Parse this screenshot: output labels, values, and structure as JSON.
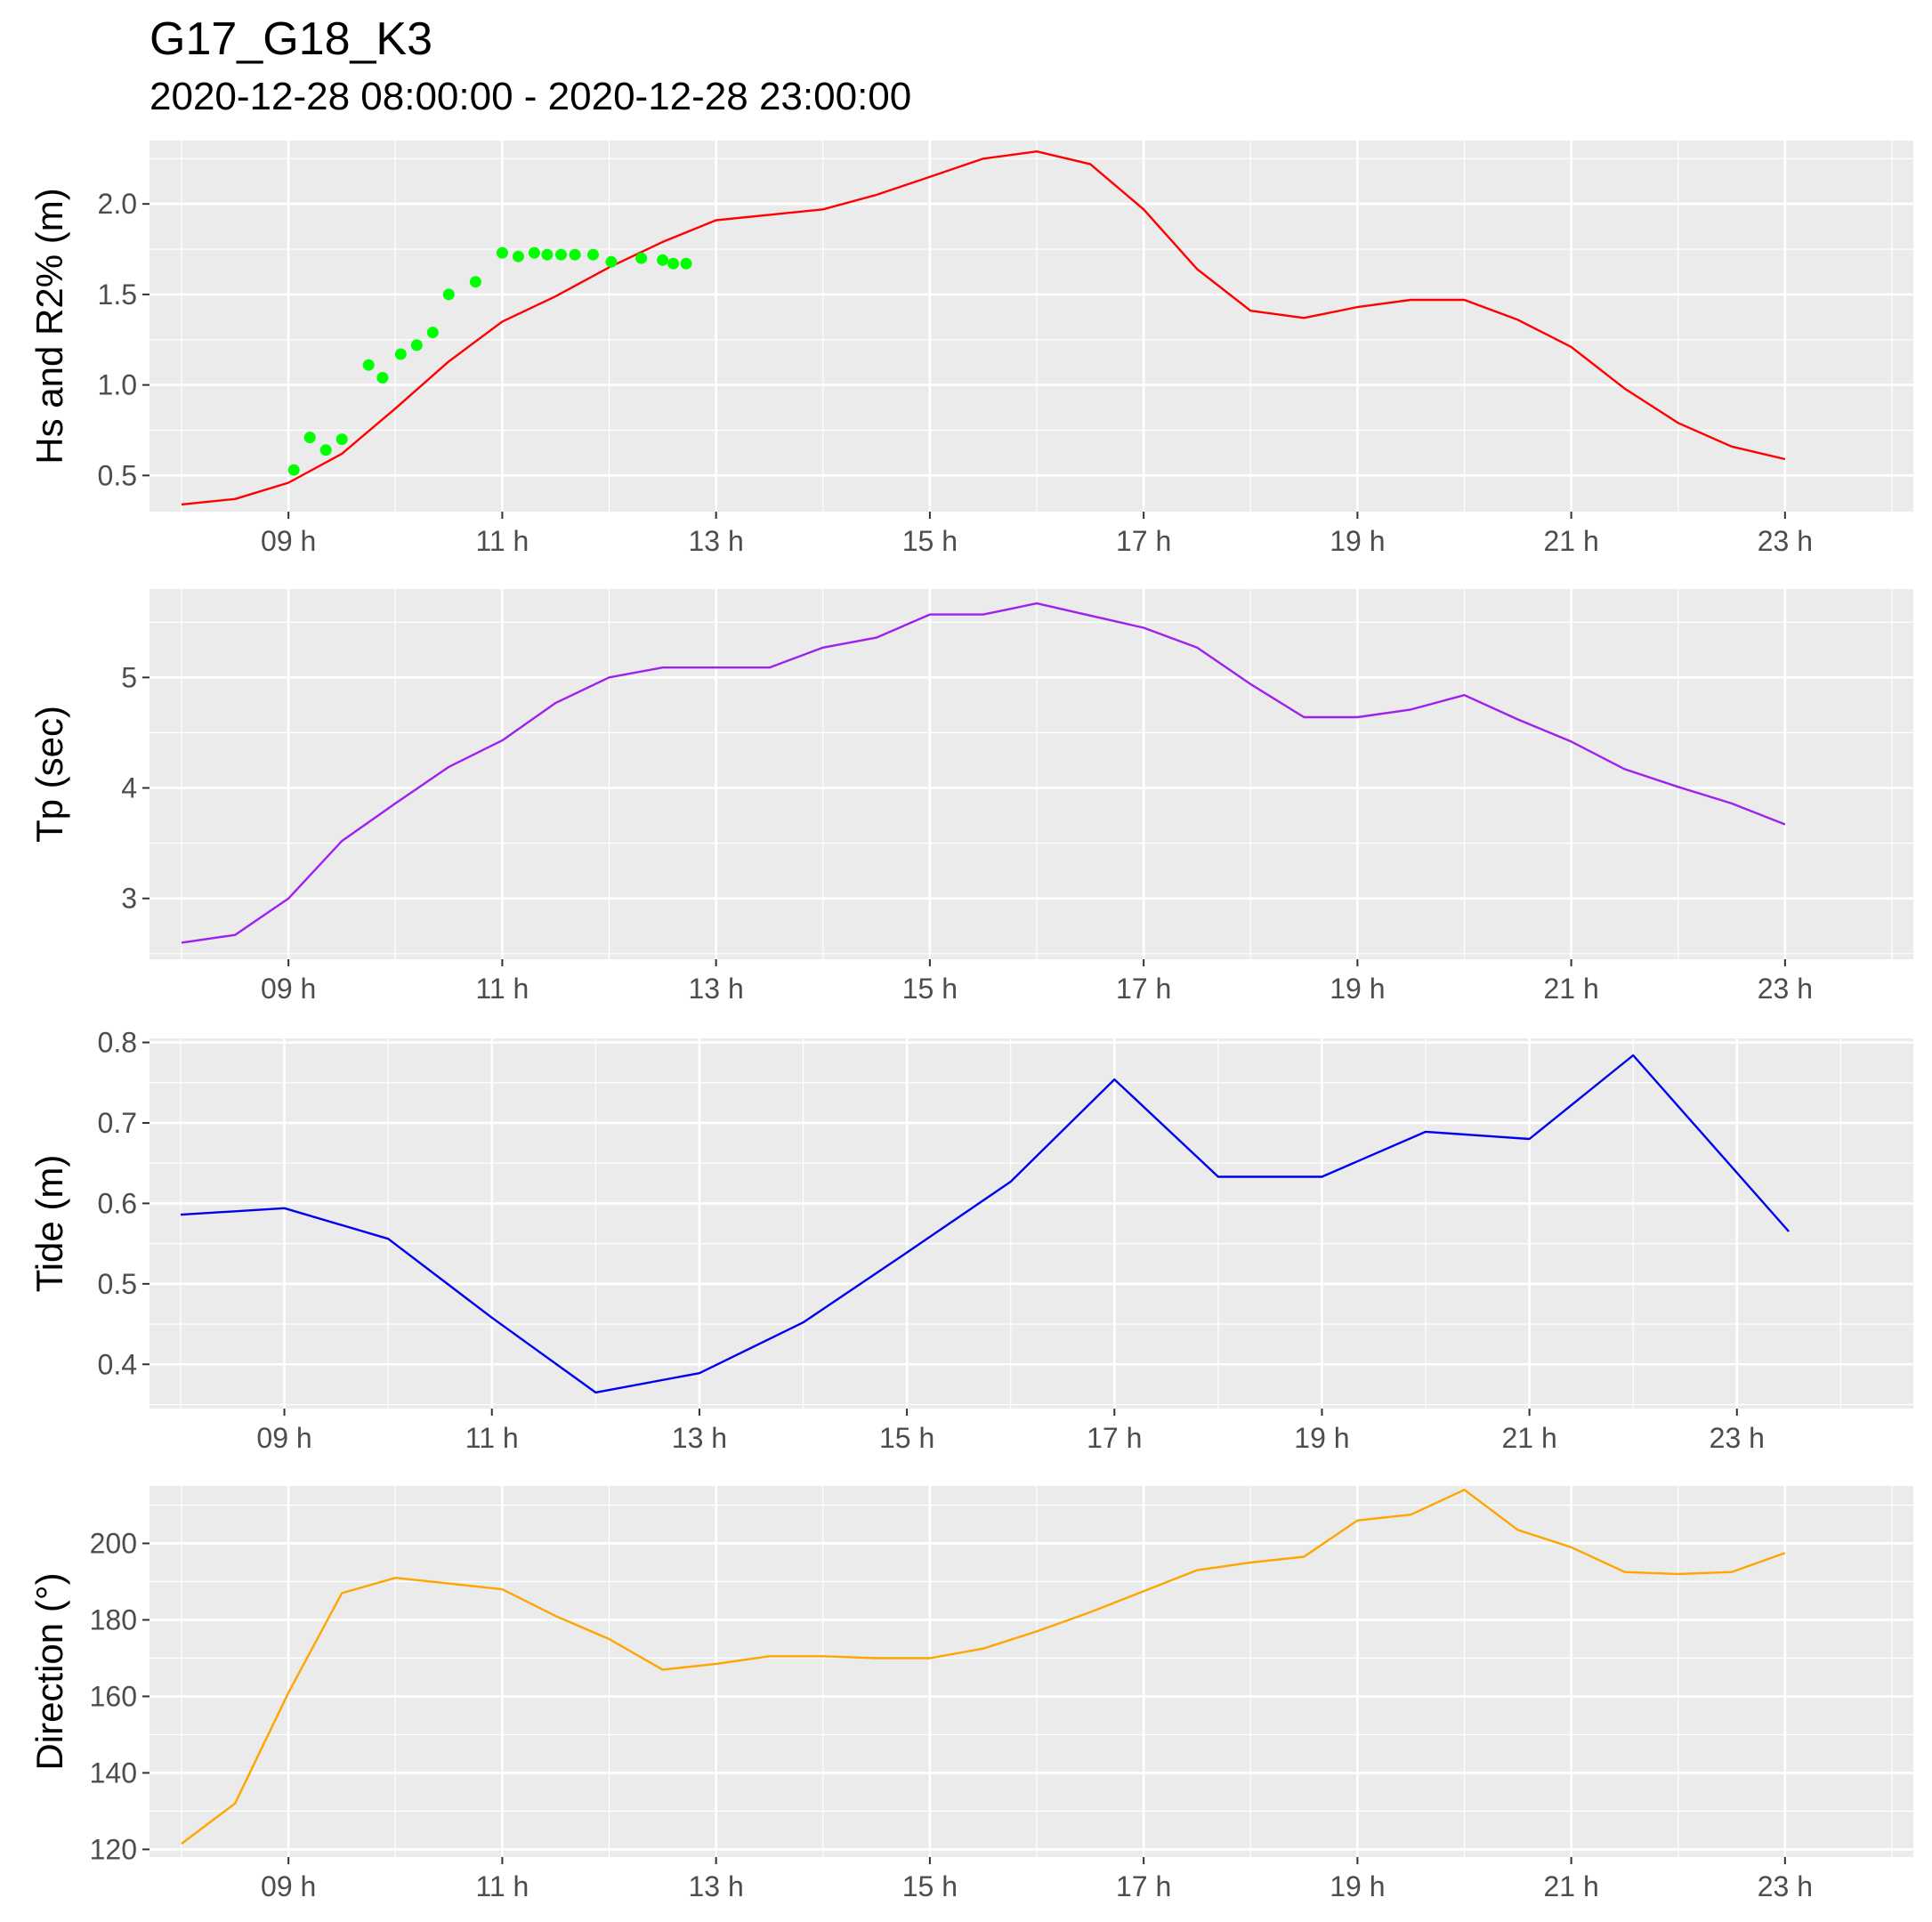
{
  "figure": {
    "title": "G17_G18_K3",
    "subtitle": "2020-12-28 08:00:00 - 2020-12-28 23:00:00"
  },
  "chart_data": [
    {
      "id": "hs",
      "type": "line",
      "ylabel": "Hs and R2% (m)",
      "xlabel": "",
      "xlim": [
        7.7,
        24.2
      ],
      "ylim": [
        0.3,
        2.35
      ],
      "x_ticks": [
        {
          "x": 9,
          "label": "09 h"
        },
        {
          "x": 11,
          "label": "11 h"
        },
        {
          "x": 13,
          "label": "13 h"
        },
        {
          "x": 15,
          "label": "15 h"
        },
        {
          "x": 17,
          "label": "17 h"
        },
        {
          "x": 19,
          "label": "19 h"
        },
        {
          "x": 21,
          "label": "21 h"
        },
        {
          "x": 23,
          "label": "23 h"
        }
      ],
      "y_ticks": [
        {
          "y": 0.5,
          "label": "0.5"
        },
        {
          "y": 1.0,
          "label": "1.0"
        },
        {
          "y": 1.5,
          "label": "1.5"
        },
        {
          "y": 2.0,
          "label": "2.0"
        }
      ],
      "series": [
        {
          "name": "Hs",
          "kind": "line",
          "color": "#ff0000",
          "x": [
            8,
            8.5,
            9,
            9.5,
            10,
            10.5,
            11,
            11.5,
            12,
            12.5,
            13,
            13.5,
            14,
            14.5,
            15,
            15.5,
            16,
            16.5,
            17,
            17.5,
            18,
            18.5,
            19,
            19.5,
            20,
            20.5,
            21,
            21.5,
            22,
            22.5,
            23
          ],
          "y": [
            0.34,
            0.37,
            0.46,
            0.62,
            0.87,
            1.13,
            1.35,
            1.49,
            1.65,
            1.79,
            1.91,
            1.94,
            1.97,
            2.05,
            2.15,
            2.25,
            2.29,
            2.22,
            1.97,
            1.64,
            1.41,
            1.37,
            1.43,
            1.47,
            1.47,
            1.36,
            1.21,
            0.98,
            0.79,
            0.66,
            0.59
          ]
        },
        {
          "name": "R2%",
          "kind": "scatter",
          "color": "#00ff00",
          "x": [
            9.05,
            9.2,
            9.35,
            9.5,
            9.75,
            9.88,
            10.05,
            10.2,
            10.35,
            10.5,
            10.75,
            11.0,
            11.15,
            11.3,
            11.42,
            11.55,
            11.68,
            11.85,
            12.02,
            12.3,
            12.5,
            12.6,
            12.72
          ],
          "y": [
            0.53,
            0.71,
            0.64,
            0.7,
            1.11,
            1.04,
            1.17,
            1.22,
            1.29,
            1.5,
            1.57,
            1.73,
            1.71,
            1.73,
            1.72,
            1.72,
            1.72,
            1.72,
            1.68,
            1.7,
            1.69,
            1.67,
            1.67
          ]
        }
      ]
    },
    {
      "id": "tp",
      "type": "line",
      "ylabel": "Tp (sec)",
      "xlabel": "",
      "xlim": [
        7.7,
        24.2
      ],
      "ylim": [
        2.45,
        5.8
      ],
      "x_ticks": [
        {
          "x": 9,
          "label": "09 h"
        },
        {
          "x": 11,
          "label": "11 h"
        },
        {
          "x": 13,
          "label": "13 h"
        },
        {
          "x": 15,
          "label": "15 h"
        },
        {
          "x": 17,
          "label": "17 h"
        },
        {
          "x": 19,
          "label": "19 h"
        },
        {
          "x": 21,
          "label": "21 h"
        },
        {
          "x": 23,
          "label": "23 h"
        }
      ],
      "y_ticks": [
        {
          "y": 3,
          "label": "3"
        },
        {
          "y": 4,
          "label": "4"
        },
        {
          "y": 5,
          "label": "5"
        }
      ],
      "series": [
        {
          "name": "Tp",
          "kind": "line",
          "color": "#a020f0",
          "x": [
            8,
            8.5,
            9,
            9.5,
            10,
            10.5,
            11,
            11.5,
            12,
            12.5,
            13,
            13.5,
            14,
            14.5,
            15,
            15.5,
            16,
            16.5,
            17,
            17.5,
            18,
            18.5,
            19,
            19.5,
            20,
            20.5,
            21,
            21.5,
            22,
            22.5,
            23
          ],
          "y": [
            2.6,
            2.67,
            3.0,
            3.52,
            3.86,
            4.19,
            4.43,
            4.77,
            5.0,
            5.09,
            5.09,
            5.09,
            5.27,
            5.36,
            5.57,
            5.57,
            5.67,
            5.56,
            5.45,
            5.27,
            4.94,
            4.64,
            4.64,
            4.71,
            4.84,
            4.62,
            4.42,
            4.17,
            4.01,
            3.86,
            3.67
          ]
        }
      ]
    },
    {
      "id": "tide",
      "type": "line",
      "ylabel": "Tide (m)",
      "xlabel": "",
      "xlim": [
        7.7,
        24.7
      ],
      "ylim": [
        0.345,
        0.805
      ],
      "x_ticks": [
        {
          "x": 9,
          "label": "09 h"
        },
        {
          "x": 11,
          "label": "11 h"
        },
        {
          "x": 13,
          "label": "13 h"
        },
        {
          "x": 15,
          "label": "15 h"
        },
        {
          "x": 17,
          "label": "17 h"
        },
        {
          "x": 19,
          "label": "19 h"
        },
        {
          "x": 21,
          "label": "21 h"
        },
        {
          "x": 23,
          "label": "23 h"
        }
      ],
      "y_ticks": [
        {
          "y": 0.4,
          "label": "0.4"
        },
        {
          "y": 0.5,
          "label": "0.5"
        },
        {
          "y": 0.6,
          "label": "0.6"
        },
        {
          "y": 0.7,
          "label": "0.7"
        },
        {
          "y": 0.8,
          "label": "0.8"
        }
      ],
      "series": [
        {
          "name": "Tide",
          "kind": "line",
          "color": "#0000ee",
          "x": [
            8,
            9,
            10,
            11,
            12,
            13,
            14,
            15,
            16,
            17,
            18,
            19,
            20,
            21,
            22,
            23.5
          ],
          "y": [
            0.586,
            0.594,
            0.556,
            0.458,
            0.365,
            0.389,
            0.452,
            0.539,
            0.627,
            0.754,
            0.633,
            0.633,
            0.689,
            0.68,
            0.784,
            0.565
          ]
        }
      ]
    },
    {
      "id": "direction",
      "type": "line",
      "ylabel": "Direction (°)",
      "xlabel": "",
      "xlim": [
        7.7,
        24.2
      ],
      "ylim": [
        118,
        215
      ],
      "x_ticks": [
        {
          "x": 9,
          "label": "09 h"
        },
        {
          "x": 11,
          "label": "11 h"
        },
        {
          "x": 13,
          "label": "13 h"
        },
        {
          "x": 15,
          "label": "15 h"
        },
        {
          "x": 17,
          "label": "17 h"
        },
        {
          "x": 19,
          "label": "19 h"
        },
        {
          "x": 21,
          "label": "21 h"
        },
        {
          "x": 23,
          "label": "23 h"
        }
      ],
      "y_ticks": [
        {
          "y": 120,
          "label": "120"
        },
        {
          "y": 140,
          "label": "140"
        },
        {
          "y": 160,
          "label": "160"
        },
        {
          "y": 180,
          "label": "180"
        },
        {
          "y": 200,
          "label": "200"
        }
      ],
      "series": [
        {
          "name": "Direction",
          "kind": "line",
          "color": "#ffa500",
          "x": [
            8,
            8.5,
            9,
            9.5,
            10,
            10.5,
            11,
            11.5,
            12,
            12.5,
            13,
            13.5,
            14,
            14.5,
            15,
            15.5,
            16,
            16.5,
            17,
            17.5,
            18,
            18.5,
            19,
            19.5,
            20,
            20.5,
            21,
            21.5,
            22,
            22.5,
            23
          ],
          "y": [
            121.5,
            132,
            161,
            187,
            191,
            189.5,
            188,
            181,
            175,
            167,
            168.5,
            170.5,
            170.5,
            170,
            170,
            172.5,
            177,
            182,
            187.5,
            193,
            195,
            196.5,
            206,
            207.5,
            214,
            203.5,
            199,
            192.5,
            192,
            192.5,
            197.5
          ]
        }
      ]
    }
  ]
}
